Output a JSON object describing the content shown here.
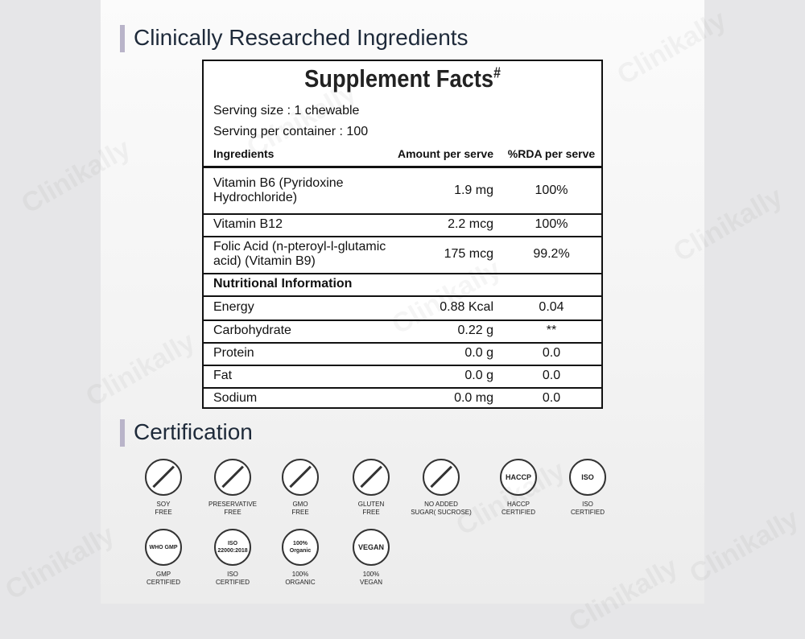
{
  "header": {
    "title": "Clinically Researched Ingredients"
  },
  "watermark": "Clinikally",
  "facts": {
    "title": "Supplement Facts",
    "title_mark": "#",
    "serving_size": "Serving size : 1 chewable",
    "servings": "Serving per container : 100",
    "columns": [
      "Ingredients",
      "Amount per serve",
      "%RDA per serve"
    ],
    "ingredients": [
      {
        "name": "Vitamin B6 (Pyridoxine Hydrochloride)",
        "amount": "1.9 mg",
        "rda": "100%"
      },
      {
        "name": "Vitamin B12",
        "amount": "2.2 mcg",
        "rda": "100%"
      },
      {
        "name": "Folic Acid (n-pteroyl-l-glutamic acid) (Vitamin B9)",
        "amount": "175 mcg",
        "rda": "99.2%"
      }
    ],
    "nutrition_title": "Nutritional Information",
    "nutrition": [
      {
        "name": "Energy",
        "amount": "0.88 Kcal",
        "rda": "0.04"
      },
      {
        "name": "Carbohydrate",
        "amount": "0.22 g",
        "rda": "**"
      },
      {
        "name": "Protein",
        "amount": "0.0 g",
        "rda": "0.0"
      },
      {
        "name": "Fat",
        "amount": "0.0 g",
        "rda": "0.0"
      },
      {
        "name": "Sodium",
        "amount": "0.0 mg",
        "rda": "0.0"
      }
    ]
  },
  "certification": {
    "title": "Certification",
    "items": [
      {
        "label": [
          "SOY",
          "FREE"
        ]
      },
      {
        "label": [
          "PRESERVATIVE",
          "FREE"
        ]
      },
      {
        "label": [
          "GMO",
          "FREE"
        ]
      },
      {
        "label": [
          "GLUTEN",
          "FREE"
        ]
      },
      {
        "label": [
          "NO ADDED",
          "SUGAR( SUCROSE)"
        ]
      },
      {
        "label": [
          "HACCP",
          "CERTIFIED"
        ],
        "badge": "HACCP"
      },
      {
        "label": [
          "ISO",
          "CERTIFIED"
        ],
        "badge": "ISO"
      },
      {
        "label": [
          "GMP",
          "CERTIFIED"
        ],
        "badge": "WHO GMP"
      },
      {
        "label": [
          "ISO",
          "CERTIFIED"
        ],
        "badge": "ISO 22000:2018"
      },
      {
        "label": [
          "100%",
          "ORGANIC"
        ],
        "badge": "100% Organic"
      },
      {
        "label": [
          "100%",
          "VEGAN"
        ],
        "badge": "VEGAN"
      }
    ]
  }
}
